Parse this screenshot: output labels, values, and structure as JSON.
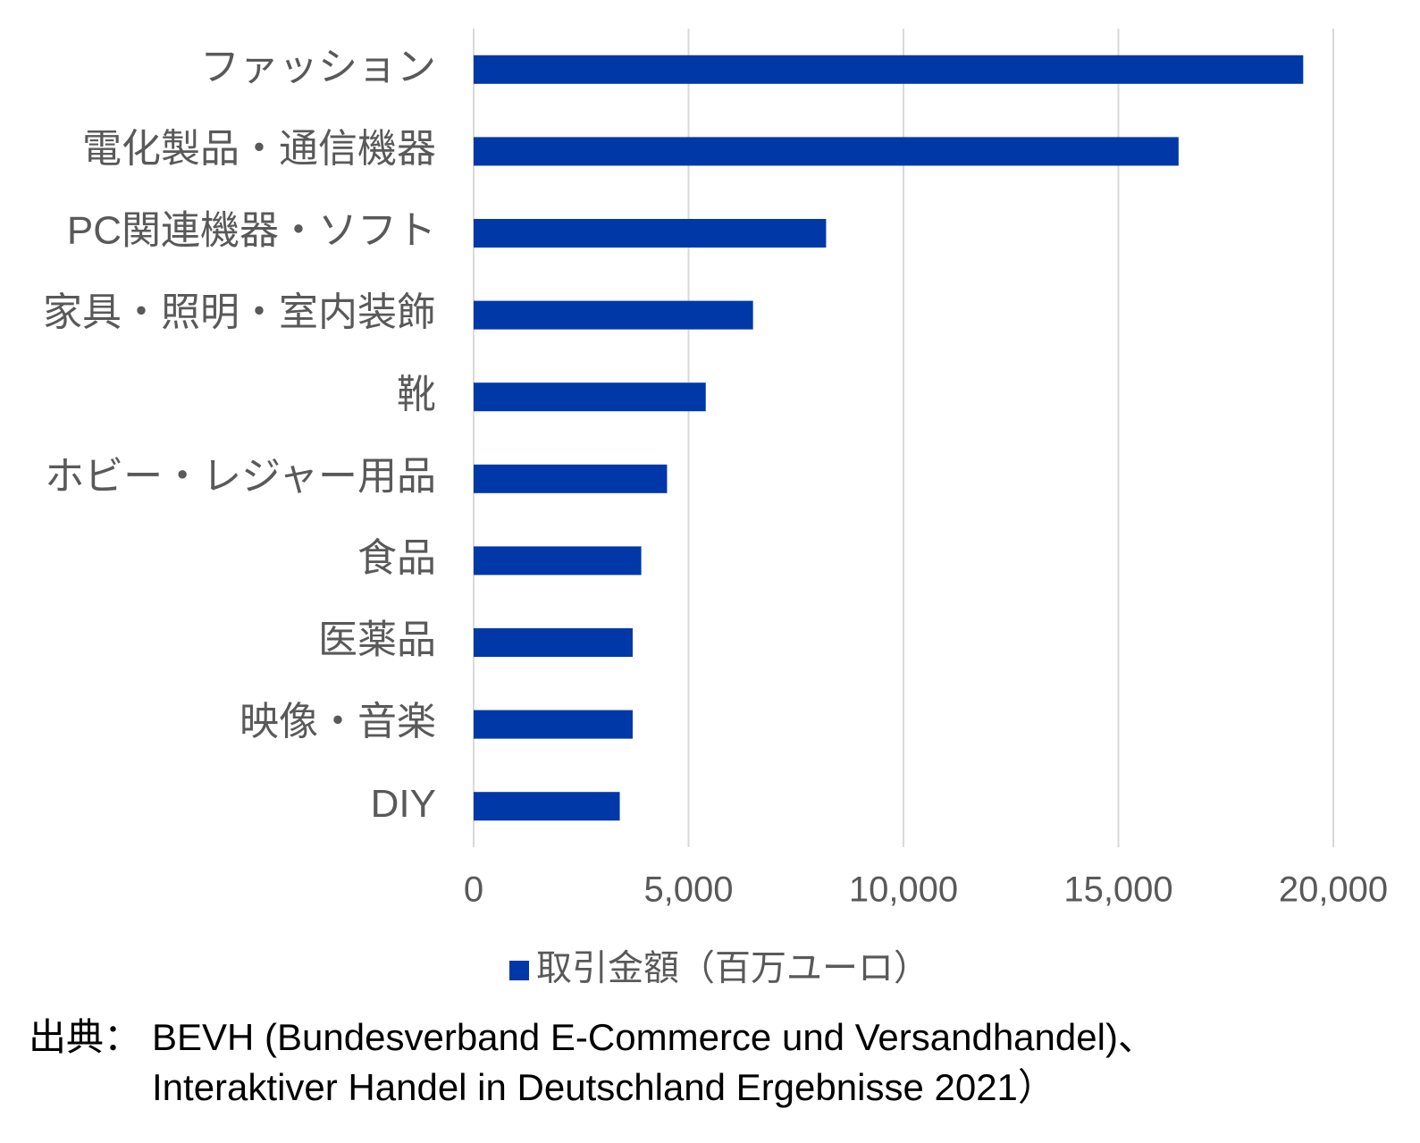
{
  "chart_data": {
    "type": "bar",
    "orientation": "horizontal",
    "categories": [
      "ファッション",
      "電化製品・通信機器",
      "PC関連機器・ソフト",
      "家具・照明・室内装飾",
      "靴",
      "ホビー・レジャー用品",
      "食品",
      "医薬品",
      "映像・音楽",
      "DIY"
    ],
    "series": [
      {
        "name": "取引金額（百万ユーロ）",
        "color": "#0038a8",
        "values": [
          19300,
          16400,
          8200,
          6500,
          5400,
          4500,
          3900,
          3700,
          3700,
          3400
        ]
      }
    ],
    "xlim": [
      0,
      20000
    ],
    "xticks": [
      0,
      {
        "value": 5000,
        "label": "5,000"
      },
      {
        "value": 10000,
        "label": "10,000"
      },
      {
        "value": 15000,
        "label": "15,000"
      },
      {
        "value": 20000,
        "label": "20,000"
      }
    ],
    "grid": true,
    "legend": "bottom",
    "source_prefix": "出典：",
    "source_lines": [
      "BEVH (Bundesverband E-Commerce und Versandhandel)、",
      "Interaktiver Handel in Deutschland Ergebnisse 2021）"
    ]
  }
}
